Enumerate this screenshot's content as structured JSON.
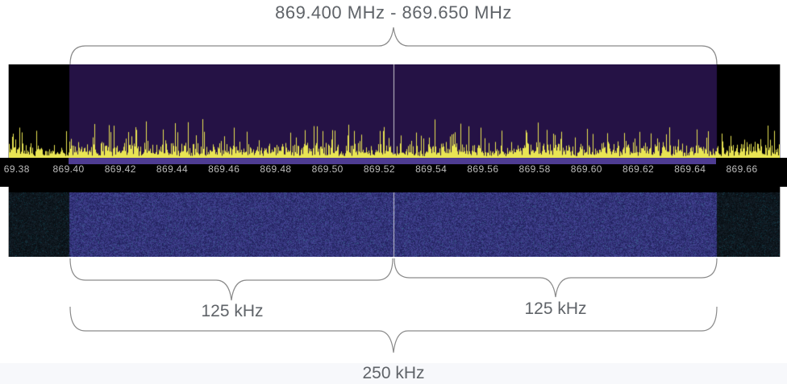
{
  "annotations": {
    "range_label": "869.400 MHz - 869.650 MHz",
    "left_channel_label": "125 kHz",
    "right_channel_label": "125 kHz",
    "total_bandwidth_label": "250 kHz",
    "text_color": "#5f6368",
    "brace_color": "#8a8a8a"
  },
  "page": {
    "background": "#ffffff",
    "footer_strip_color": "#f7f8fb"
  },
  "sdr_display": {
    "spectrum": {
      "background": "#000000",
      "selection_color": "#251245",
      "trace_color": "#e9e553",
      "center_line_color": "#c9c9cf"
    },
    "ruler": {
      "background": "#000000",
      "band_color": "#4e3c92",
      "tick_color": "#bdbdbd",
      "ticks": [
        "69.38",
        "869.40",
        "869.42",
        "869.44",
        "869.46",
        "869.48",
        "869.50",
        "869.52",
        "869.54",
        "869.56",
        "869.58",
        "869.60",
        "869.62",
        "869.64",
        "869.66"
      ]
    },
    "waterfall": {
      "inside_color": "#2d2d6e",
      "outside_color": "#0a1014",
      "center_line_color": "#d7d7dc"
    }
  }
}
